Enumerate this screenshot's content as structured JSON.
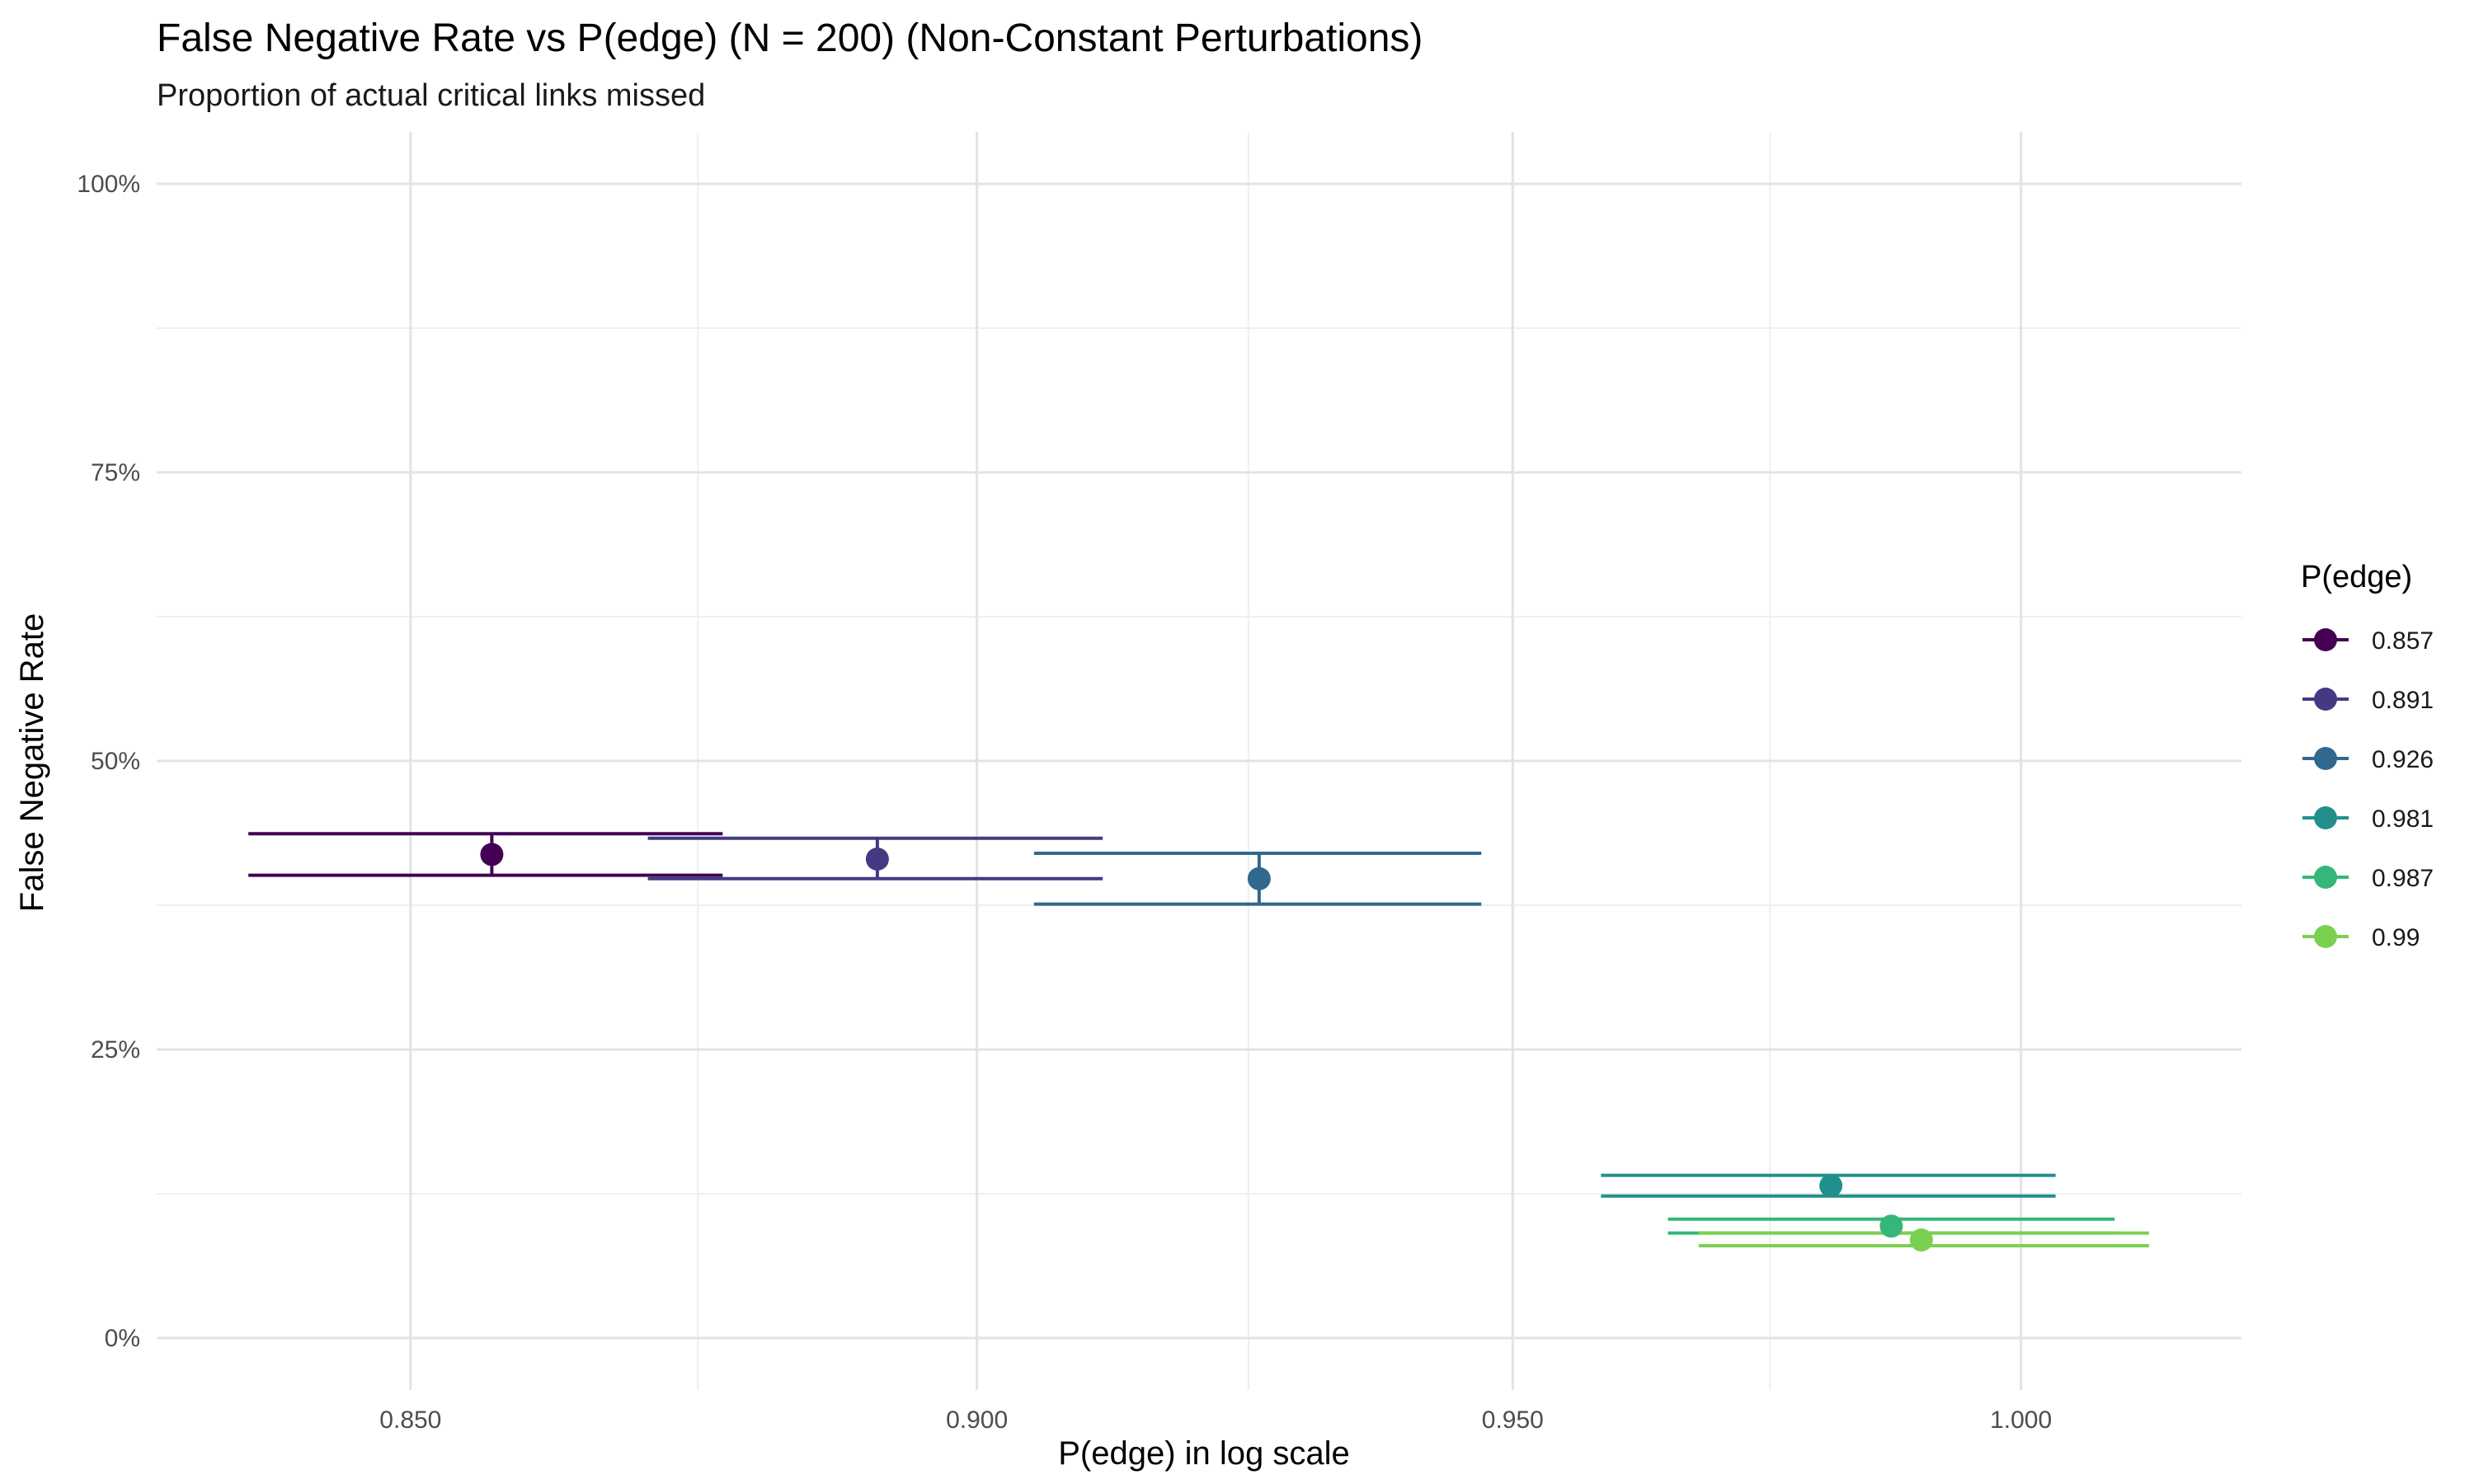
{
  "chart_data": {
    "type": "scatter",
    "title": "False Negative Rate vs P(edge) (N = 200) (Non-Constant Perturbations)",
    "subtitle": "Proportion of actual critical links missed",
    "xlabel": "P(edge) in log scale",
    "ylabel": "False Negative Rate",
    "x_scale": "log",
    "xlim": [
      0.8285,
      1.0225
    ],
    "ylim": [
      -0.045,
      1.045
    ],
    "x_ticks": [
      0.85,
      0.9,
      0.95,
      1.0
    ],
    "x_tick_labels": [
      "0.850",
      "0.900",
      "0.950",
      "1.000"
    ],
    "y_ticks": [
      0,
      0.25,
      0.5,
      0.75,
      1.0
    ],
    "y_tick_labels": [
      "0%",
      "25%",
      "50%",
      "75%",
      "100%"
    ],
    "grid": true,
    "legend_title": "P(edge)",
    "legend_position": "right",
    "series": [
      {
        "name": "0.857",
        "color": "#440154",
        "x": 0.857,
        "y": 0.419,
        "y_err": [
          0.401,
          0.437
        ],
        "x_err": [
          0.8362,
          0.8772
        ]
      },
      {
        "name": "0.891",
        "color": "#443A83",
        "x": 0.891,
        "y": 0.415,
        "y_err": [
          0.398,
          0.433
        ],
        "x_err": [
          0.8706,
          0.9115
        ]
      },
      {
        "name": "0.926",
        "color": "#31688E",
        "x": 0.926,
        "y": 0.398,
        "y_err": [
          0.376,
          0.42
        ],
        "x_err": [
          0.9052,
          0.947
        ]
      },
      {
        "name": "0.981",
        "color": "#21908C",
        "x": 0.981,
        "y": 0.132,
        "y_err": [
          0.123,
          0.141
        ],
        "x_err": [
          0.9585,
          1.0035
        ]
      },
      {
        "name": "0.987",
        "color": "#35B779",
        "x": 0.987,
        "y": 0.097,
        "y_err": [
          0.091,
          0.103
        ],
        "x_err": [
          0.965,
          1.0095
        ]
      },
      {
        "name": "0.99",
        "color": "#7AD151",
        "x": 0.99,
        "y": 0.085,
        "y_err": [
          0.08,
          0.091
        ],
        "x_err": [
          0.968,
          1.013
        ]
      }
    ]
  }
}
